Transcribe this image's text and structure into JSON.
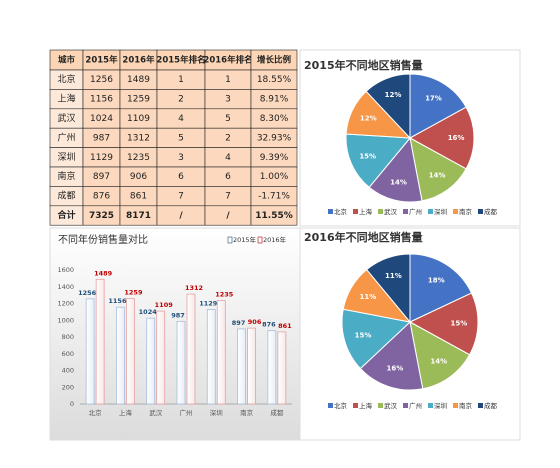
{
  "table": {
    "headers": [
      "城市",
      "2015年",
      "2016年",
      "2015年排名",
      "2016年排名",
      "增长比例"
    ],
    "rows": [
      [
        "北京",
        "1256",
        "1489",
        "1",
        "1",
        "18.55%"
      ],
      [
        "上海",
        "1156",
        "1259",
        "2",
        "3",
        "8.91%"
      ],
      [
        "武汉",
        "1024",
        "1109",
        "4",
        "5",
        "8.30%"
      ],
      [
        "广州",
        "987",
        "1312",
        "5",
        "2",
        "32.93%"
      ],
      [
        "深圳",
        "1129",
        "1235",
        "3",
        "4",
        "9.39%"
      ],
      [
        "南京",
        "897",
        "906",
        "6",
        "6",
        "1.00%"
      ],
      [
        "成都",
        "876",
        "861",
        "7",
        "7",
        "-1.71%"
      ],
      [
        "合计",
        "7325",
        "8171",
        "/",
        "/",
        "11.55%"
      ]
    ]
  },
  "chart_data": [
    {
      "type": "pie",
      "title": "2015年不同地区销售量",
      "categories": [
        "北京",
        "上海",
        "武汉",
        "广州",
        "深圳",
        "南京",
        "成都"
      ],
      "values": [
        17,
        16,
        14,
        14,
        15,
        12,
        12
      ],
      "value_labels": [
        "17%",
        "16%",
        "14%",
        "14%",
        "15%",
        "12%",
        "12%"
      ],
      "colors": [
        "#4472c4",
        "#c0504d",
        "#9bbb59",
        "#8064a2",
        "#4bacc6",
        "#f79646",
        "#1f497d"
      ],
      "legend": "bottom"
    },
    {
      "type": "bar",
      "title": "不同年份销售量对比",
      "categories": [
        "北京",
        "上海",
        "武汉",
        "广州",
        "深圳",
        "南京",
        "成都"
      ],
      "series": [
        {
          "name": "2015年",
          "color": "#1f4e79",
          "values": [
            1256,
            1156,
            1024,
            987,
            1129,
            897,
            876
          ]
        },
        {
          "name": "2016年",
          "color": "#c00000",
          "values": [
            1489,
            1259,
            1109,
            1312,
            1235,
            906,
            861
          ]
        }
      ],
      "ylim": [
        0,
        1600
      ],
      "yticks": [
        0,
        200,
        400,
        600,
        800,
        1000,
        1200,
        1400,
        1600
      ],
      "legend": "top-right"
    },
    {
      "type": "pie",
      "title": "2016年不同地区销售量",
      "categories": [
        "北京",
        "上海",
        "武汉",
        "广州",
        "深圳",
        "南京",
        "成都"
      ],
      "values": [
        18,
        15,
        14,
        16,
        15,
        11,
        11
      ],
      "value_labels": [
        "18%",
        "15%",
        "14%",
        "16%",
        "15%",
        "11%",
        "11%"
      ],
      "colors": [
        "#4472c4",
        "#c0504d",
        "#9bbb59",
        "#8064a2",
        "#4bacc6",
        "#f79646",
        "#1f497d"
      ],
      "legend": "bottom"
    }
  ]
}
